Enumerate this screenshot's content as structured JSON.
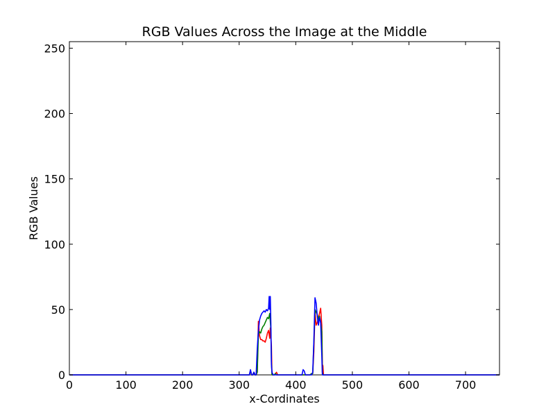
{
  "chart_data": {
    "type": "line",
    "title": "RGB Values Across the Image at the Middle",
    "xlabel": "x-Cordinates",
    "ylabel": "RGB Values",
    "xlim": [
      0,
      760
    ],
    "ylim": [
      0,
      255
    ],
    "xticks": [
      0,
      100,
      200,
      300,
      400,
      500,
      600,
      700
    ],
    "yticks": [
      0,
      50,
      100,
      150,
      200,
      250
    ],
    "xtick_labels": [
      "0",
      "100",
      "200",
      "300",
      "400",
      "500",
      "600",
      "700"
    ],
    "ytick_labels": [
      "0",
      "50",
      "100",
      "150",
      "200",
      "250"
    ],
    "grid": false,
    "legend": false,
    "series": [
      {
        "color": "#ff0000",
        "points": [
          [
            0,
            0
          ],
          [
            318,
            0
          ],
          [
            320,
            3
          ],
          [
            322,
            0
          ],
          [
            324,
            0
          ],
          [
            326,
            2
          ],
          [
            328,
            0
          ],
          [
            330,
            0
          ],
          [
            332,
            2
          ],
          [
            334,
            41
          ],
          [
            336,
            30
          ],
          [
            338,
            27
          ],
          [
            340,
            27
          ],
          [
            342,
            26
          ],
          [
            344,
            26
          ],
          [
            346,
            25
          ],
          [
            348,
            28
          ],
          [
            350,
            32
          ],
          [
            352,
            34
          ],
          [
            354,
            28
          ],
          [
            355,
            36
          ],
          [
            356,
            30
          ],
          [
            357,
            22
          ],
          [
            358,
            0
          ],
          [
            362,
            0
          ],
          [
            364,
            1
          ],
          [
            366,
            2
          ],
          [
            368,
            0
          ],
          [
            425,
            0
          ],
          [
            428,
            1
          ],
          [
            430,
            1
          ],
          [
            432,
            18
          ],
          [
            434,
            48
          ],
          [
            436,
            38
          ],
          [
            438,
            40
          ],
          [
            440,
            44
          ],
          [
            442,
            47
          ],
          [
            444,
            51
          ],
          [
            446,
            38
          ],
          [
            447,
            8
          ],
          [
            448,
            7
          ],
          [
            449,
            0
          ],
          [
            760,
            0
          ]
        ]
      },
      {
        "color": "#008000",
        "points": [
          [
            0,
            0
          ],
          [
            318,
            0
          ],
          [
            320,
            3
          ],
          [
            322,
            0
          ],
          [
            324,
            0
          ],
          [
            326,
            2
          ],
          [
            328,
            0
          ],
          [
            330,
            0
          ],
          [
            332,
            2
          ],
          [
            334,
            31
          ],
          [
            336,
            33
          ],
          [
            338,
            32
          ],
          [
            340,
            35
          ],
          [
            342,
            37
          ],
          [
            344,
            38
          ],
          [
            346,
            40
          ],
          [
            348,
            42
          ],
          [
            350,
            44
          ],
          [
            352,
            43
          ],
          [
            354,
            47
          ],
          [
            355,
            41
          ],
          [
            356,
            35
          ],
          [
            357,
            10
          ],
          [
            358,
            0
          ],
          [
            362,
            0
          ],
          [
            364,
            1
          ],
          [
            366,
            0
          ],
          [
            368,
            0
          ],
          [
            425,
            0
          ],
          [
            428,
            1
          ],
          [
            430,
            1
          ],
          [
            432,
            25
          ],
          [
            434,
            50
          ],
          [
            436,
            48
          ],
          [
            438,
            46
          ],
          [
            440,
            42
          ],
          [
            442,
            45
          ],
          [
            444,
            40
          ],
          [
            446,
            33
          ],
          [
            447,
            2
          ],
          [
            448,
            0
          ],
          [
            760,
            0
          ]
        ]
      },
      {
        "color": "#0000ff",
        "points": [
          [
            0,
            0
          ],
          [
            318,
            0
          ],
          [
            320,
            4
          ],
          [
            322,
            0
          ],
          [
            324,
            0
          ],
          [
            326,
            2
          ],
          [
            328,
            0
          ],
          [
            330,
            0
          ],
          [
            332,
            20
          ],
          [
            334,
            34
          ],
          [
            336,
            42
          ],
          [
            338,
            45
          ],
          [
            340,
            47
          ],
          [
            342,
            48
          ],
          [
            344,
            49
          ],
          [
            346,
            48
          ],
          [
            348,
            50
          ],
          [
            350,
            49
          ],
          [
            352,
            51
          ],
          [
            353,
            60
          ],
          [
            354,
            50
          ],
          [
            355,
            60
          ],
          [
            356,
            40
          ],
          [
            357,
            8
          ],
          [
            358,
            2
          ],
          [
            360,
            0
          ],
          [
            411,
            0
          ],
          [
            413,
            4
          ],
          [
            415,
            3
          ],
          [
            417,
            0
          ],
          [
            428,
            0
          ],
          [
            430,
            2
          ],
          [
            432,
            26
          ],
          [
            434,
            59
          ],
          [
            436,
            55
          ],
          [
            438,
            45
          ],
          [
            440,
            38
          ],
          [
            442,
            44
          ],
          [
            444,
            40
          ],
          [
            446,
            15
          ],
          [
            447,
            0
          ],
          [
            760,
            0
          ]
        ]
      }
    ]
  }
}
